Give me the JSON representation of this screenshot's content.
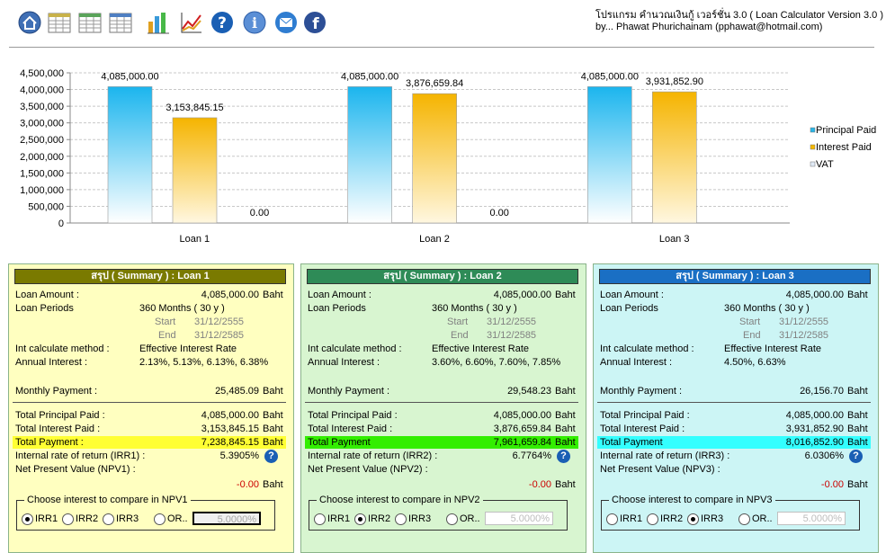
{
  "toolbar": {
    "icons": [
      "home-icon",
      "table-icon",
      "table-icon",
      "table-icon",
      "bar-chart-icon",
      "line-chart-icon",
      "help-icon",
      "info-icon",
      "mail-icon",
      "facebook-icon"
    ]
  },
  "app": {
    "title": "โปรแกรม คำนวณเงินกู้ เวอร์ชั่น 3.0 ( Loan Calculator Version 3.0 )",
    "by": "by... Phawat Phurichainam (pphawat@hotmail.com)"
  },
  "chart_data": {
    "type": "bar",
    "categories": [
      "Loan 1",
      "Loan 2",
      "Loan 3"
    ],
    "series": [
      {
        "name": "Principal Paid",
        "values": [
          4085000.0,
          4085000.0,
          4085000.0
        ],
        "labels": [
          "4,085,000.00",
          "4,085,000.00",
          "4,085,000.00"
        ],
        "color": "#29b6e8"
      },
      {
        "name": "Interest  Paid",
        "values": [
          3153845.15,
          3876659.84,
          3931852.9
        ],
        "labels": [
          "3,153,845.15",
          "3,876,659.84",
          "3,931,852.90"
        ],
        "color": "#f5b800"
      },
      {
        "name": "VAT",
        "values": [
          0,
          0,
          0
        ],
        "labels": [
          "0.00",
          "0.00",
          ""
        ],
        "color": "#dfe9f5"
      }
    ],
    "ylim": [
      0,
      4500000
    ],
    "yticks": [
      "0",
      "500,000",
      "1,000,000",
      "1,500,000",
      "2,000,000",
      "2,500,000",
      "3,000,000",
      "3,500,000",
      "4,000,000",
      "4,500,000"
    ],
    "grid": true,
    "legend": "right"
  },
  "panels": [
    {
      "title": "สรุป ( Summary ) : Loan 1",
      "header_color": "#7a7a00",
      "bg": "#ffffc0",
      "labels": {
        "loan_amount": "Loan Amount :",
        "loan_periods": "Loan Periods",
        "start": "Start",
        "end": "End",
        "method": "Int calculate method :",
        "annual": "Annual Interest :",
        "monthly": "Monthly Payment :",
        "total_principal": "Total Principal Paid :",
        "total_interest": "Total Interest Paid :",
        "total_payment": "Total Payment :",
        "irr": "Internal rate of return (IRR1) :",
        "npv": "Net Present Value (NPV1) :",
        "unit": "Baht"
      },
      "loan_amount": "4,085,000.00",
      "periods": "360 Months  ( 30 y )",
      "start": "31/12/2555",
      "end": "31/12/2585",
      "method": "Effective Interest Rate",
      "annual": "2.13%, 5.13%, 6.13%, 6.38%",
      "monthly": "25,485.09",
      "total_principal": "4,085,000.00",
      "total_interest": "3,153,845.15",
      "total_payment": "7,238,845.15",
      "payment_hl": "#ffff33",
      "irr": "5.3905%",
      "npv": "-0.00",
      "compare_title": "Choose interest to compare in NPV1",
      "options": [
        "IRR1",
        "IRR2",
        "IRR3",
        "OR.."
      ],
      "selected": 0,
      "other_rate": "5.0000%",
      "focused": true
    },
    {
      "title": "สรุป ( Summary ) : Loan 2",
      "header_color": "#2e8b57",
      "bg": "#d8f5d0",
      "labels": {
        "loan_amount": "Loan Amount :",
        "loan_periods": "Loan Periods",
        "start": "Start",
        "end": "End",
        "method": "Int calculate method :",
        "annual": "Annual Interest :",
        "monthly": "Monthly Payment :",
        "total_principal": "Total Principal Paid :",
        "total_interest": "Total Interest Paid :",
        "total_payment": "Total Payment",
        "irr": "Internal rate of return (IRR2) :",
        "npv": "Net Present Value (NPV2) :",
        "unit": "Baht"
      },
      "loan_amount": "4,085,000.00",
      "periods": "360 Months  ( 30 y )",
      "start": "31/12/2555",
      "end": "31/12/2585",
      "method": "Effective Interest Rate",
      "annual": "3.60%, 6.60%, 7.60%, 7.85%",
      "monthly": "29,548.23",
      "total_principal": "4,085,000.00",
      "total_interest": "3,876,659.84",
      "total_payment": "7,961,659.84",
      "payment_hl": "#33ee00",
      "irr": "6.7764%",
      "npv": "-0.00",
      "compare_title": "Choose interest to compare in NPV2",
      "options": [
        "IRR1",
        "IRR2",
        "IRR3",
        "OR.."
      ],
      "selected": 1,
      "other_rate": "5.0000%",
      "focused": false
    },
    {
      "title": "สรุป ( Summary ) : Loan 3",
      "header_color": "#1a6fc4",
      "bg": "#ccf5f5",
      "labels": {
        "loan_amount": "Loan Amount :",
        "loan_periods": "Loan Periods",
        "start": "Start",
        "end": "End",
        "method": "Int calculate method :",
        "annual": "Annual Interest :",
        "monthly": "Monthly Payment :",
        "total_principal": "Total Principal Paid :",
        "total_interest": "Total Interest Paid :",
        "total_payment": "Total Payment",
        "irr": "Internal rate of return (IRR3) :",
        "npv": "Net Present Value (NPV3) :",
        "unit": "Baht"
      },
      "loan_amount": "4,085,000.00",
      "periods": "360 Months  ( 30 y )",
      "start": "31/12/2555",
      "end": "31/12/2585",
      "method": "Effective Interest Rate",
      "annual": "4.50%, 6.63%",
      "monthly": "26,156.70",
      "total_principal": "4,085,000.00",
      "total_interest": "3,931,852.90",
      "total_payment": "8,016,852.90",
      "payment_hl": "#33ffff",
      "irr": "6.0306%",
      "npv": "-0.00",
      "compare_title": "Choose interest to compare in NPV3",
      "options": [
        "IRR1",
        "IRR2",
        "IRR3",
        "OR.."
      ],
      "selected": 2,
      "other_rate": "5.0000%",
      "focused": false
    }
  ]
}
